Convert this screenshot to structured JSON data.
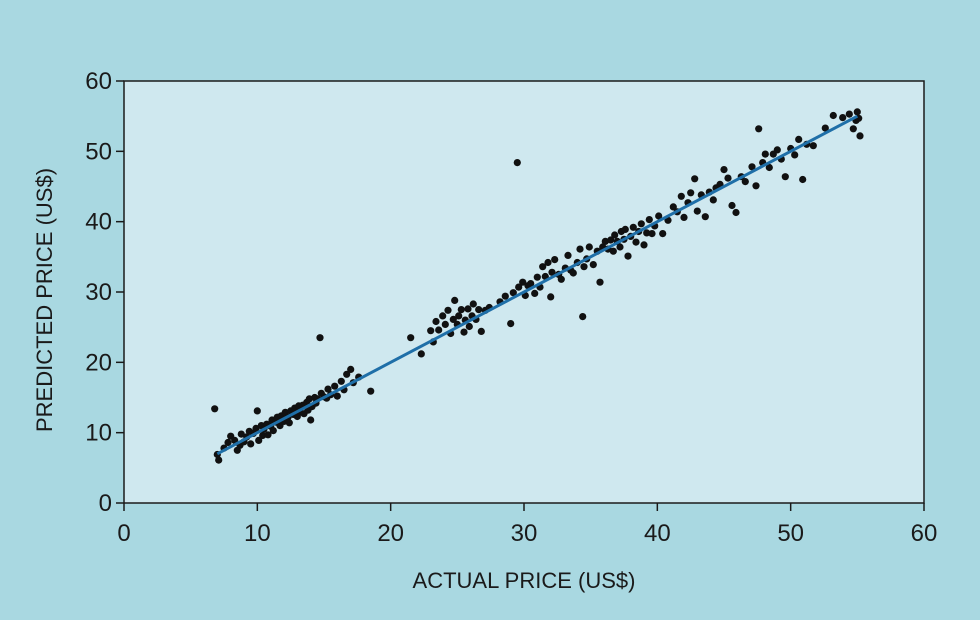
{
  "chart_data": {
    "type": "scatter",
    "title": "",
    "xlabel": "ACTUAL PRICE (US$)",
    "ylabel": "PREDICTED PRICE (US$)",
    "xlim": [
      0,
      60
    ],
    "ylim": [
      0,
      60
    ],
    "xticks": [
      "0",
      "10",
      "20",
      "30",
      "40",
      "50",
      "60"
    ],
    "yticks": [
      "0",
      "10",
      "20",
      "30",
      "40",
      "50",
      "60"
    ],
    "grid": false,
    "colors": {
      "background": "#a9d8e1",
      "plot_area": "#cfe8ef",
      "points": "#111111",
      "fit_line": "#1f6fa8"
    },
    "fit_line": {
      "x": [
        7,
        55
      ],
      "y": [
        7,
        55
      ]
    },
    "points": [
      [
        6.8,
        13.4
      ],
      [
        7,
        6.9
      ],
      [
        7.1,
        6.1
      ],
      [
        7.5,
        7.8
      ],
      [
        7.8,
        8.6
      ],
      [
        8,
        9.5
      ],
      [
        8.3,
        8.9
      ],
      [
        8.5,
        7.5
      ],
      [
        8.7,
        8.2
      ],
      [
        8.8,
        9.8
      ],
      [
        9,
        8.7
      ],
      [
        9.2,
        9.4
      ],
      [
        9.4,
        10.2
      ],
      [
        9.5,
        8.4
      ],
      [
        9.7,
        9.9
      ],
      [
        9.9,
        10.6
      ],
      [
        10,
        13.1
      ],
      [
        10.1,
        8.9
      ],
      [
        10.3,
        11
      ],
      [
        10.4,
        9.6
      ],
      [
        10.5,
        10.5
      ],
      [
        10.7,
        11.2
      ],
      [
        10.8,
        9.7
      ],
      [
        11,
        10.9
      ],
      [
        11.1,
        11.8
      ],
      [
        11.2,
        10.3
      ],
      [
        11.4,
        11.5
      ],
      [
        11.5,
        12.2
      ],
      [
        11.7,
        11
      ],
      [
        11.8,
        12.4
      ],
      [
        12,
        11.6
      ],
      [
        12.1,
        12.9
      ],
      [
        12.3,
        12.2
      ],
      [
        12.4,
        11.4
      ],
      [
        12.5,
        13.1
      ],
      [
        12.7,
        12.6
      ],
      [
        12.8,
        13.5
      ],
      [
        13,
        12.3
      ],
      [
        13.1,
        13.8
      ],
      [
        13.2,
        12.9
      ],
      [
        13.4,
        13.9
      ],
      [
        13.5,
        12.7
      ],
      [
        13.7,
        14.3
      ],
      [
        13.8,
        13.2
      ],
      [
        13.9,
        14.8
      ],
      [
        14,
        11.8
      ],
      [
        14.1,
        13.7
      ],
      [
        14.3,
        15
      ],
      [
        14.4,
        14.2
      ],
      [
        14.5,
        14.8
      ],
      [
        14.7,
        23.5
      ],
      [
        14.8,
        15.6
      ],
      [
        15,
        15.1
      ],
      [
        15.2,
        14.9
      ],
      [
        15.3,
        16.2
      ],
      [
        15.5,
        15.4
      ],
      [
        15.8,
        16.6
      ],
      [
        16,
        15.2
      ],
      [
        16.3,
        17.3
      ],
      [
        16.5,
        16.1
      ],
      [
        16.7,
        18.3
      ],
      [
        17,
        19
      ],
      [
        17.2,
        17.1
      ],
      [
        17.6,
        17.9
      ],
      [
        18.5,
        15.9
      ],
      [
        21.5,
        23.5
      ],
      [
        22.3,
        21.2
      ],
      [
        23,
        24.5
      ],
      [
        23.2,
        22.9
      ],
      [
        23.4,
        25.8
      ],
      [
        23.6,
        24.6
      ],
      [
        23.9,
        26.6
      ],
      [
        24.1,
        25.4
      ],
      [
        24.3,
        27.4
      ],
      [
        24.5,
        24.1
      ],
      [
        24.7,
        26.1
      ],
      [
        24.8,
        28.8
      ],
      [
        25,
        25.4
      ],
      [
        25.1,
        26.6
      ],
      [
        25.3,
        27.5
      ],
      [
        25.5,
        24.3
      ],
      [
        25.6,
        26
      ],
      [
        25.8,
        27.6
      ],
      [
        25.9,
        25.1
      ],
      [
        26.1,
        26.6
      ],
      [
        26.2,
        28.3
      ],
      [
        26.4,
        26.1
      ],
      [
        26.6,
        27.5
      ],
      [
        26.8,
        24.4
      ],
      [
        27.1,
        27.4
      ],
      [
        27.4,
        27.8
      ],
      [
        28.2,
        28.6
      ],
      [
        28.6,
        29.4
      ],
      [
        29,
        25.5
      ],
      [
        29.2,
        29.9
      ],
      [
        29.5,
        48.4
      ],
      [
        29.6,
        30.7
      ],
      [
        29.9,
        31.4
      ],
      [
        30.1,
        29.5
      ],
      [
        30.3,
        30.9
      ],
      [
        30.5,
        31.2
      ],
      [
        30.8,
        29.8
      ],
      [
        31,
        32.1
      ],
      [
        31.2,
        30.7
      ],
      [
        31.4,
        33.6
      ],
      [
        31.6,
        32.2
      ],
      [
        31.8,
        34.2
      ],
      [
        32,
        29.3
      ],
      [
        32.1,
        32.8
      ],
      [
        32.3,
        34.6
      ],
      [
        32.6,
        32.5
      ],
      [
        32.8,
        31.8
      ],
      [
        33.1,
        33.4
      ],
      [
        33.3,
        35.2
      ],
      [
        33.5,
        33.1
      ],
      [
        33.7,
        32.7
      ],
      [
        34,
        34.2
      ],
      [
        34.2,
        36.1
      ],
      [
        34.4,
        26.5
      ],
      [
        34.5,
        33.6
      ],
      [
        34.7,
        34.7
      ],
      [
        34.9,
        36.4
      ],
      [
        35.2,
        33.9
      ],
      [
        35.5,
        35.8
      ],
      [
        35.7,
        31.4
      ],
      [
        35.9,
        36.4
      ],
      [
        36.1,
        37.2
      ],
      [
        36.3,
        36.1
      ],
      [
        36.5,
        37.4
      ],
      [
        36.7,
        35.8
      ],
      [
        36.8,
        38.1
      ],
      [
        37,
        37.2
      ],
      [
        37.2,
        36.4
      ],
      [
        37.3,
        38.6
      ],
      [
        37.5,
        37.5
      ],
      [
        37.6,
        38.9
      ],
      [
        37.8,
        35.1
      ],
      [
        38,
        37.9
      ],
      [
        38.2,
        39.2
      ],
      [
        38.4,
        37.1
      ],
      [
        38.6,
        38.6
      ],
      [
        38.8,
        39.7
      ],
      [
        39,
        36.7
      ],
      [
        39.2,
        38.4
      ],
      [
        39.4,
        40.3
      ],
      [
        39.6,
        38.3
      ],
      [
        39.8,
        39.4
      ],
      [
        40.1,
        40.8
      ],
      [
        40.4,
        38.3
      ],
      [
        40.8,
        40.2
      ],
      [
        41.2,
        42.1
      ],
      [
        41.5,
        41.4
      ],
      [
        41.8,
        43.6
      ],
      [
        42,
        40.6
      ],
      [
        42.3,
        42.7
      ],
      [
        42.5,
        44.1
      ],
      [
        42.8,
        46.1
      ],
      [
        43,
        41.5
      ],
      [
        43.3,
        43.8
      ],
      [
        43.6,
        40.7
      ],
      [
        43.9,
        44.2
      ],
      [
        44.2,
        43.1
      ],
      [
        44.4,
        44.8
      ],
      [
        44.7,
        45.3
      ],
      [
        45,
        47.4
      ],
      [
        45.3,
        46.2
      ],
      [
        45.6,
        42.3
      ],
      [
        45.9,
        41.3
      ],
      [
        46.3,
        46.4
      ],
      [
        46.6,
        45.7
      ],
      [
        47.1,
        47.8
      ],
      [
        47.4,
        45.1
      ],
      [
        47.6,
        53.2
      ],
      [
        47.9,
        48.4
      ],
      [
        48.1,
        49.6
      ],
      [
        48.4,
        47.7
      ],
      [
        48.7,
        49.6
      ],
      [
        49,
        50.2
      ],
      [
        49.3,
        48.9
      ],
      [
        49.6,
        46.4
      ],
      [
        50,
        50.4
      ],
      [
        50.3,
        49.5
      ],
      [
        50.6,
        51.7
      ],
      [
        50.9,
        46
      ],
      [
        51.2,
        51
      ],
      [
        51.7,
        50.8
      ],
      [
        52.6,
        53.3
      ],
      [
        53.2,
        55.1
      ],
      [
        53.9,
        54.8
      ],
      [
        54.4,
        55.3
      ],
      [
        54.7,
        53.2
      ],
      [
        54.9,
        54.4
      ],
      [
        55,
        55.6
      ],
      [
        55.2,
        52.2
      ],
      [
        55.1,
        54.7
      ]
    ]
  }
}
